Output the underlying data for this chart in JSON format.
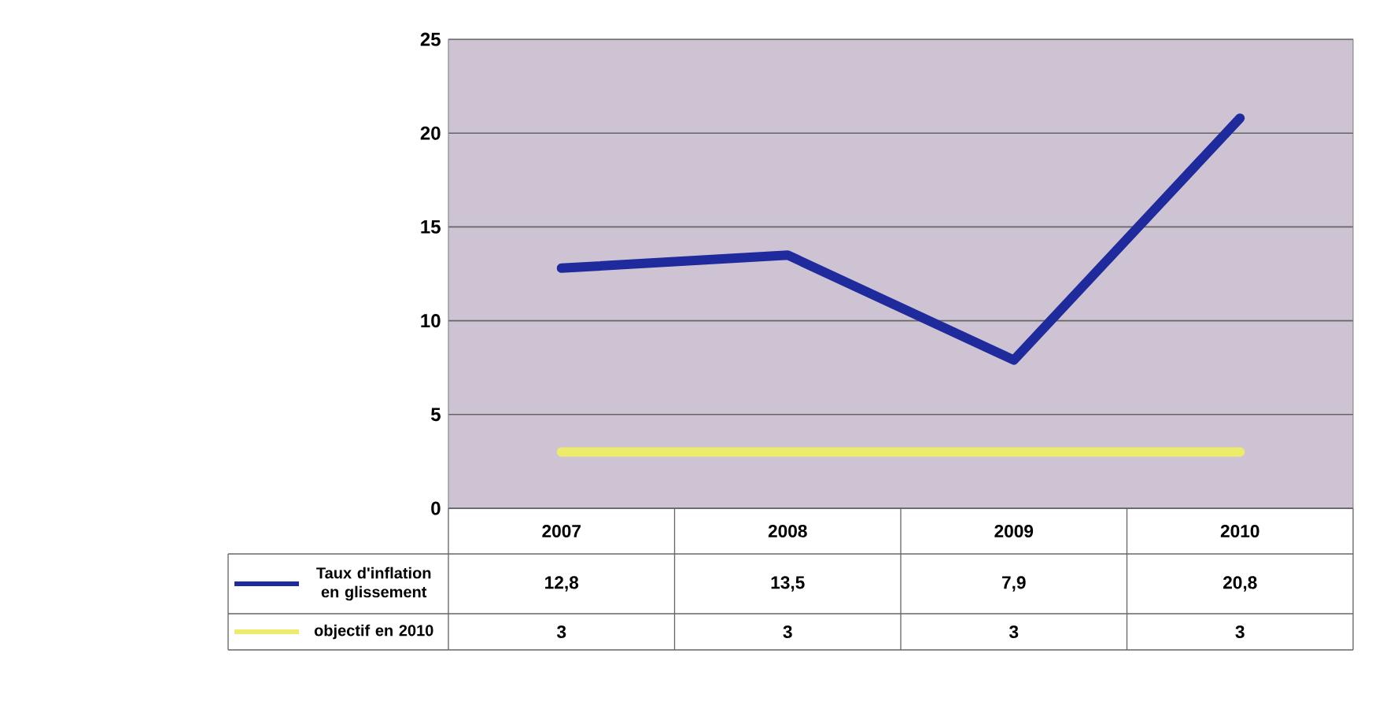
{
  "chart_data": {
    "type": "line",
    "categories": [
      "2007",
      "2008",
      "2009",
      "2010"
    ],
    "series": [
      {
        "name": "Taux d'inflation en glissement",
        "color": "#1f2a9c",
        "values": [
          12.8,
          13.5,
          7.9,
          20.8
        ],
        "value_labels": [
          "12,8",
          "13,5",
          "7,9",
          "20,8"
        ]
      },
      {
        "name": "objectif en 2010",
        "color": "#ecec6a",
        "values": [
          3,
          3,
          3,
          3
        ],
        "value_labels": [
          "3",
          "3",
          "3",
          "3"
        ]
      }
    ],
    "ylim": [
      0,
      25
    ],
    "yticks": [
      0,
      5,
      10,
      15,
      20,
      25
    ],
    "grid": "y",
    "legend": "bottom left"
  }
}
